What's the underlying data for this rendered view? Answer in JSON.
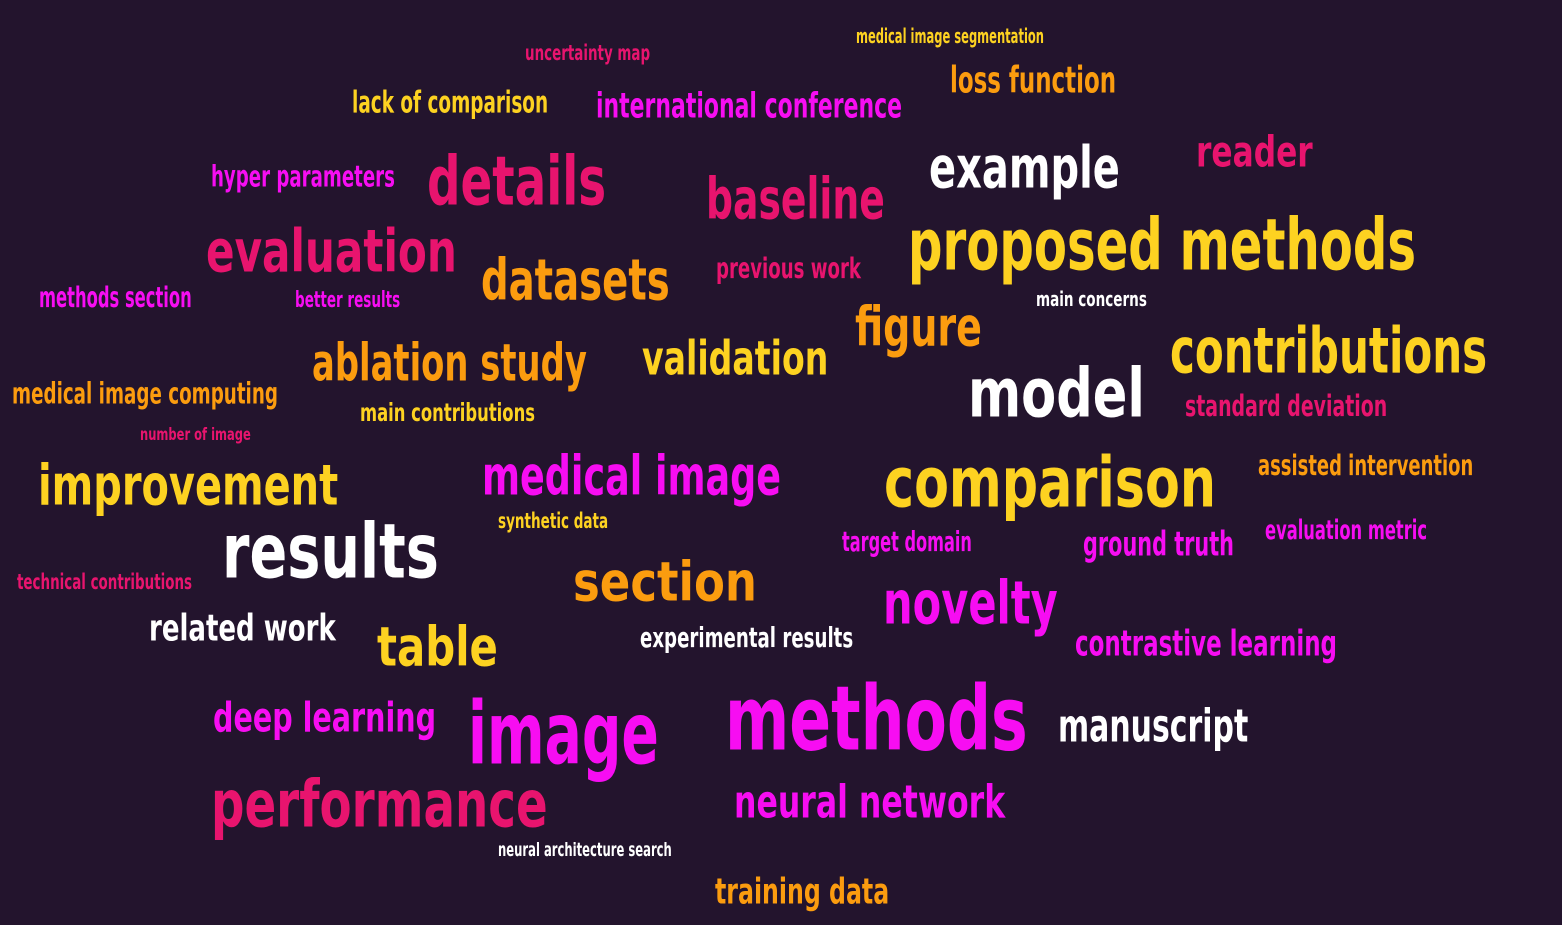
{
  "palette": {
    "background": "#23142d",
    "magenta": "#f70df2",
    "pink": "#e8146e",
    "orange": "#fb9c0f",
    "yellow": "#fdd221",
    "white": "#ffffff"
  },
  "words": [
    {
      "text": "medical image segmentation",
      "color": "yellow"
    },
    {
      "text": "uncertainty map",
      "color": "pink"
    },
    {
      "text": "loss function",
      "color": "orange"
    },
    {
      "text": "lack of comparison",
      "color": "yellow"
    },
    {
      "text": "international conference",
      "color": "magenta"
    },
    {
      "text": "reader",
      "color": "pink"
    },
    {
      "text": "hyper parameters",
      "color": "magenta"
    },
    {
      "text": "details",
      "color": "pink"
    },
    {
      "text": "example",
      "color": "white"
    },
    {
      "text": "baseline",
      "color": "pink"
    },
    {
      "text": "proposed methods",
      "color": "yellow"
    },
    {
      "text": "evaluation",
      "color": "pink"
    },
    {
      "text": "datasets",
      "color": "orange"
    },
    {
      "text": "previous work",
      "color": "pink"
    },
    {
      "text": "methods section",
      "color": "magenta"
    },
    {
      "text": "better results",
      "color": "magenta"
    },
    {
      "text": "main concerns",
      "color": "white"
    },
    {
      "text": "figure",
      "color": "orange"
    },
    {
      "text": "contributions",
      "color": "yellow"
    },
    {
      "text": "ablation study",
      "color": "orange"
    },
    {
      "text": "validation",
      "color": "yellow"
    },
    {
      "text": "model",
      "color": "white"
    },
    {
      "text": "medical image computing",
      "color": "orange"
    },
    {
      "text": "main contributions",
      "color": "yellow"
    },
    {
      "text": "standard deviation",
      "color": "pink"
    },
    {
      "text": "number of image",
      "color": "pink"
    },
    {
      "text": "improvement",
      "color": "yellow"
    },
    {
      "text": "medical image",
      "color": "magenta"
    },
    {
      "text": "comparison",
      "color": "yellow"
    },
    {
      "text": "assisted intervention",
      "color": "orange"
    },
    {
      "text": "synthetic data",
      "color": "yellow"
    },
    {
      "text": "results",
      "color": "white"
    },
    {
      "text": "target domain",
      "color": "magenta"
    },
    {
      "text": "ground truth",
      "color": "magenta"
    },
    {
      "text": "evaluation metric",
      "color": "magenta"
    },
    {
      "text": "technical contributions",
      "color": "pink"
    },
    {
      "text": "section",
      "color": "orange"
    },
    {
      "text": "novelty",
      "color": "magenta"
    },
    {
      "text": "related work",
      "color": "white"
    },
    {
      "text": "table",
      "color": "yellow"
    },
    {
      "text": "experimental results",
      "color": "white"
    },
    {
      "text": "contrastive learning",
      "color": "magenta"
    },
    {
      "text": "deep learning",
      "color": "magenta"
    },
    {
      "text": "image",
      "color": "magenta"
    },
    {
      "text": "methods",
      "color": "magenta"
    },
    {
      "text": "manuscript",
      "color": "white"
    },
    {
      "text": "performance",
      "color": "pink"
    },
    {
      "text": "neural network",
      "color": "magenta"
    },
    {
      "text": "neural architecture search",
      "color": "white"
    },
    {
      "text": "training data",
      "color": "orange"
    }
  ]
}
